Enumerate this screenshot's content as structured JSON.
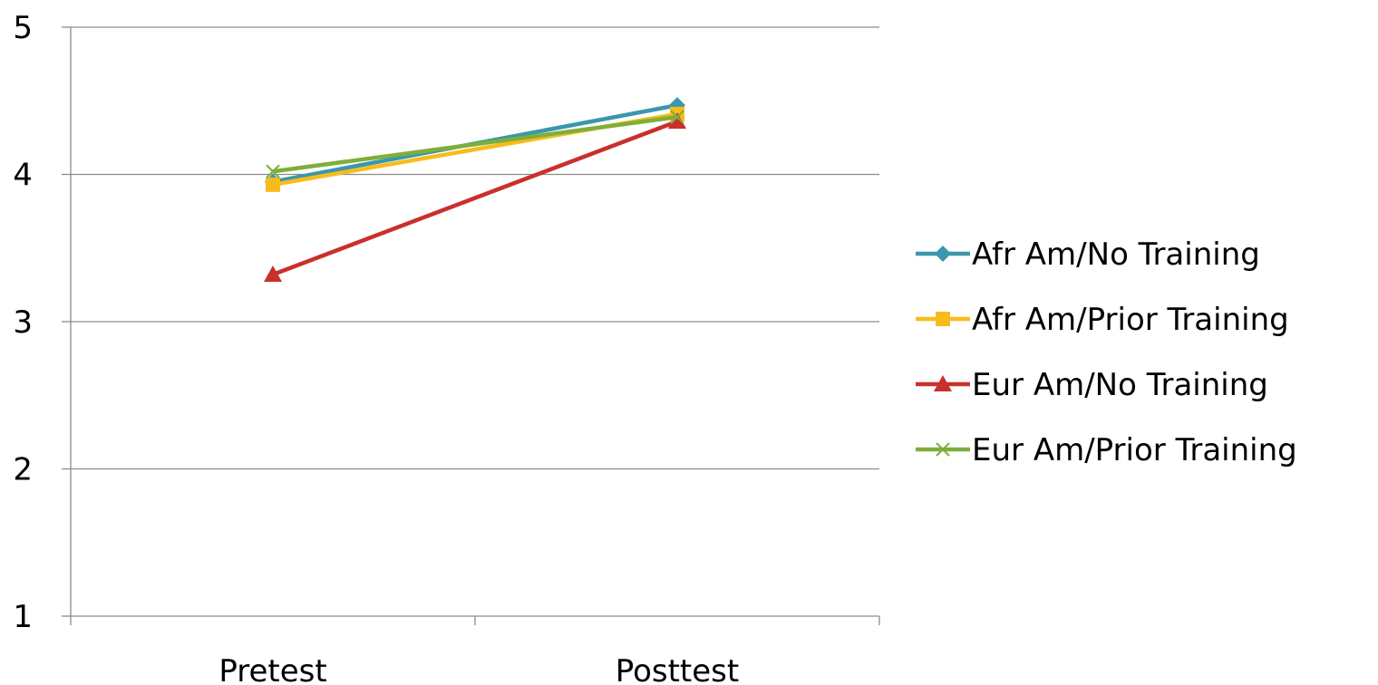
{
  "chart_data": {
    "type": "line",
    "title": "",
    "xlabel": "",
    "ylabel": "",
    "categories": [
      "Pretest",
      "Posttest"
    ],
    "ylim": [
      1,
      5
    ],
    "yticks": [
      "1",
      "2",
      "3",
      "4",
      "5"
    ],
    "grid": true,
    "legend_position": "right",
    "series": [
      {
        "name": "Afr Am/No Training",
        "values": [
          3.95,
          4.47
        ],
        "color": "#3a97ad",
        "marker": "diamond"
      },
      {
        "name": "Afr Am/Prior Training",
        "values": [
          3.93,
          4.41
        ],
        "color": "#f7bc1c",
        "marker": "square"
      },
      {
        "name": "Eur Am/No Training",
        "values": [
          3.32,
          4.36
        ],
        "color": "#c9302c",
        "marker": "triangle"
      },
      {
        "name": "Eur Am/Prior Training",
        "values": [
          4.02,
          4.39
        ],
        "color": "#7fae3a",
        "marker": "x"
      }
    ]
  }
}
